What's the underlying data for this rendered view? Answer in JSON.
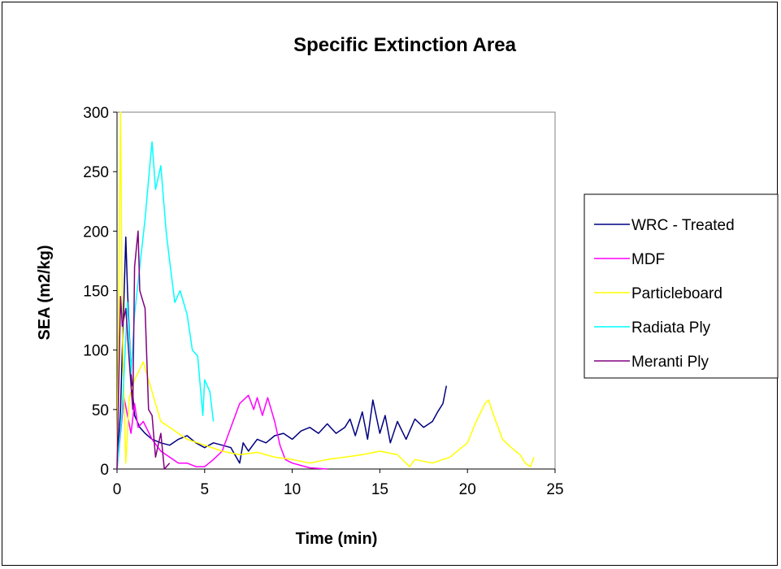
{
  "chart_data": {
    "type": "line",
    "title": "Specific Extinction Area",
    "xlabel": "Time (min)",
    "ylabel": "SEA (m2/kg)",
    "xlim": [
      0,
      25
    ],
    "ylim": [
      0,
      300
    ],
    "xticks": [
      0,
      5,
      10,
      15,
      20,
      25
    ],
    "yticks": [
      0,
      50,
      100,
      150,
      200,
      250,
      300
    ],
    "grid": false,
    "legend": "right",
    "series": [
      {
        "name": "WRC - Treated",
        "color": "#000080",
        "x": [
          0,
          0.2,
          0.3,
          0.4,
          0.5,
          0.6,
          0.8,
          1.0,
          1.3,
          1.6,
          2.0,
          2.5,
          3.0,
          3.5,
          4.0,
          4.5,
          5.0,
          5.5,
          6.0,
          6.5,
          7.0,
          7.2,
          7.5,
          8.0,
          8.5,
          9.0,
          9.5,
          10.0,
          10.5,
          11.0,
          11.5,
          12.0,
          12.5,
          13.0,
          13.3,
          13.6,
          14.0,
          14.3,
          14.6,
          15.0,
          15.3,
          15.6,
          16.0,
          16.5,
          17.0,
          17.5,
          18.0,
          18.3,
          18.6,
          18.8
        ],
        "y": [
          0,
          50,
          100,
          145,
          195,
          150,
          80,
          45,
          35,
          30,
          25,
          22,
          20,
          25,
          28,
          22,
          18,
          22,
          20,
          18,
          5,
          22,
          15,
          25,
          22,
          28,
          30,
          25,
          32,
          35,
          30,
          38,
          30,
          35,
          42,
          28,
          48,
          25,
          58,
          30,
          45,
          22,
          40,
          25,
          42,
          35,
          40,
          48,
          55,
          70
        ]
      },
      {
        "name": "MDF",
        "color": "#ff00ff",
        "x": [
          0,
          0.2,
          0.4,
          0.6,
          0.8,
          1.0,
          1.2,
          1.5,
          2.0,
          2.5,
          3.0,
          3.5,
          4.0,
          4.5,
          5.0,
          5.5,
          6.0,
          6.5,
          7.0,
          7.5,
          7.8,
          8.0,
          8.3,
          8.6,
          9.0,
          9.3,
          9.6,
          10.0,
          10.5,
          11.0,
          12.0
        ],
        "y": [
          0,
          30,
          60,
          45,
          30,
          55,
          35,
          40,
          25,
          15,
          10,
          5,
          5,
          2,
          2,
          8,
          15,
          35,
          55,
          62,
          50,
          60,
          45,
          60,
          40,
          20,
          8,
          5,
          3,
          1,
          0
        ]
      },
      {
        "name": "Particleboard",
        "color": "#ffff00",
        "x": [
          0,
          0.1,
          0.2,
          0.3,
          0.4,
          0.5,
          0.7,
          1.0,
          1.5,
          2.0,
          2.5,
          3.0,
          4.0,
          5.0,
          6.0,
          7.0,
          8.0,
          9.0,
          10.0,
          11.0,
          12.0,
          13.0,
          14.0,
          15.0,
          16.0,
          16.7,
          17.0,
          18.0,
          19.0,
          20.0,
          20.5,
          21.0,
          21.2,
          21.5,
          22.0,
          22.5,
          23.0,
          23.3,
          23.6,
          23.8
        ],
        "y": [
          0,
          150,
          300,
          120,
          60,
          5,
          60,
          75,
          90,
          65,
          40,
          35,
          25,
          20,
          15,
          12,
          14,
          10,
          8,
          5,
          8,
          10,
          12,
          15,
          12,
          2,
          8,
          5,
          10,
          22,
          40,
          55,
          58,
          45,
          25,
          18,
          12,
          5,
          2,
          10
        ]
      },
      {
        "name": "Radiata Ply",
        "color": "#00ffff",
        "x": [
          0,
          0.3,
          0.6,
          0.8,
          1.0,
          1.3,
          1.6,
          1.9,
          2.0,
          2.2,
          2.5,
          2.8,
          3.0,
          3.3,
          3.6,
          4.0,
          4.3,
          4.6,
          4.9,
          5.0,
          5.3,
          5.5
        ],
        "y": [
          0,
          50,
          140,
          80,
          130,
          170,
          210,
          260,
          275,
          235,
          255,
          200,
          175,
          140,
          150,
          130,
          100,
          95,
          45,
          75,
          65,
          40
        ]
      },
      {
        "name": "Meranti Ply",
        "color": "#800080",
        "x": [
          0,
          0.2,
          0.3,
          0.5,
          0.7,
          0.9,
          1.0,
          1.2,
          1.3,
          1.5,
          1.6,
          1.8,
          2.0,
          2.2,
          2.5,
          2.7,
          3.0
        ],
        "y": [
          0,
          145,
          120,
          135,
          90,
          50,
          170,
          200,
          150,
          140,
          135,
          50,
          45,
          10,
          30,
          0,
          5
        ]
      }
    ]
  }
}
